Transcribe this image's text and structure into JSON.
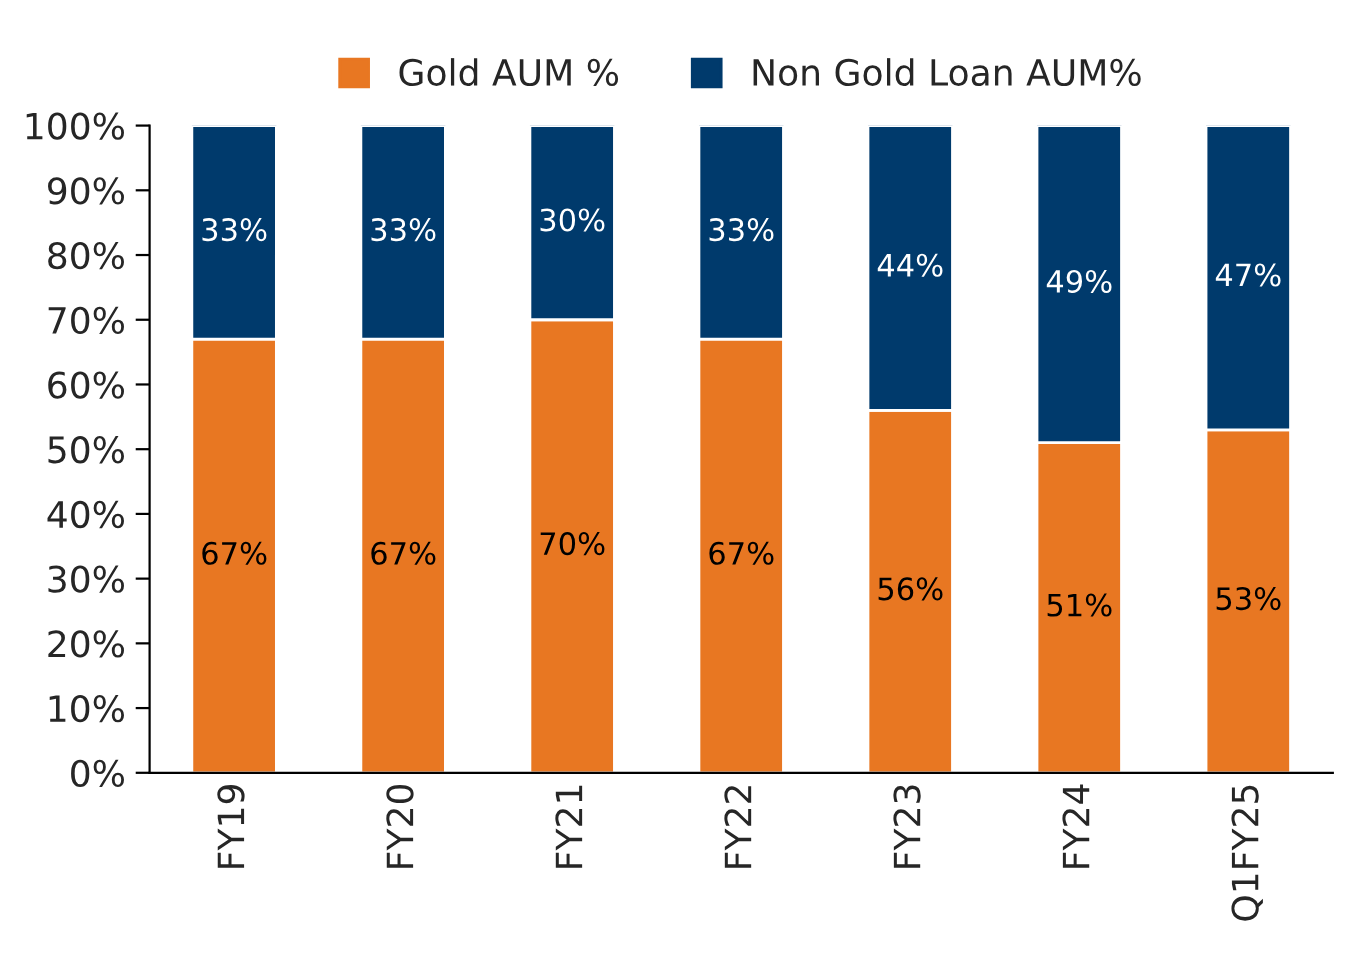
{
  "chart_data": {
    "type": "bar",
    "stacked": true,
    "categories": [
      "FY19",
      "FY20",
      "FY21",
      "FY22",
      "FY23",
      "FY24",
      "Q1FY25"
    ],
    "series": [
      {
        "name": "Gold AUM %",
        "color": "#e87722",
        "values": [
          67,
          67,
          70,
          67,
          56,
          51,
          53
        ],
        "value_labels": [
          "67%",
          "67%",
          "70%",
          "67%",
          "56%",
          "51%",
          "53%"
        ]
      },
      {
        "name": "Non Gold Loan AUM%",
        "color": "#003a6c",
        "values": [
          33,
          33,
          30,
          33,
          44,
          49,
          47
        ],
        "value_labels": [
          "33%",
          "33%",
          "30%",
          "33%",
          "44%",
          "49%",
          "47%"
        ]
      }
    ],
    "ylim": [
      0,
      100
    ],
    "yticks": [
      {
        "value": 0,
        "label": "0%"
      },
      {
        "value": 10,
        "label": "10%"
      },
      {
        "value": 20,
        "label": "20%"
      },
      {
        "value": 30,
        "label": "30%"
      },
      {
        "value": 40,
        "label": "40%"
      },
      {
        "value": 50,
        "label": "50%"
      },
      {
        "value": 60,
        "label": "60%"
      },
      {
        "value": 70,
        "label": "70%"
      },
      {
        "value": 80,
        "label": "80%"
      },
      {
        "value": 90,
        "label": "90%"
      },
      {
        "value": 100,
        "label": "100%"
      }
    ],
    "grid": false,
    "legend": "top"
  }
}
